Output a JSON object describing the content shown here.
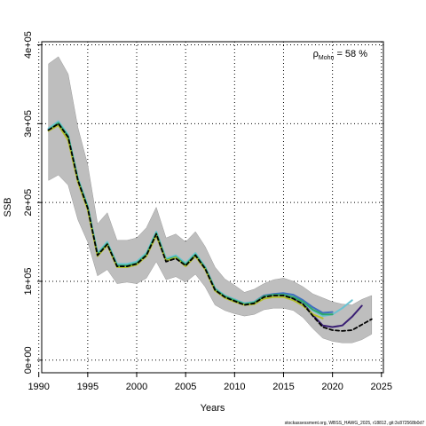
{
  "chart_data": {
    "type": "line",
    "xlabel": "Years",
    "ylabel": "SSB",
    "xlim": [
      1990.3,
      2025.2
    ],
    "ylim": [
      -16000,
      404000
    ],
    "x_ticks": [
      1990,
      1995,
      2000,
      2005,
      2010,
      2015,
      2020,
      2025
    ],
    "x_tick_labels": [
      "1990",
      "1995",
      "2000",
      "2005",
      "2010",
      "2015",
      "2020",
      "2025"
    ],
    "y_ticks": [
      0,
      100000,
      200000,
      300000,
      400000
    ],
    "y_tick_labels": [
      "0e+00",
      "1e+05",
      "2e+05",
      "3e+05",
      "4e+05"
    ],
    "grid": true,
    "annotation": {
      "rho": "ρ",
      "subscript": "Mohn",
      "value": " = 58 %"
    },
    "credit": "stockassessment.org, WBSS_HAWG_2025, r18812, git:3c872568b0d7",
    "band": {
      "color": "#bebebe",
      "x": [
        1991,
        1992,
        1993,
        1994,
        1995,
        1996,
        1997,
        1998,
        1999,
        2000,
        2001,
        2002,
        2003,
        2004,
        2005,
        2006,
        2007,
        2008,
        2009,
        2010,
        2011,
        2012,
        2013,
        2014,
        2015,
        2016,
        2017,
        2018,
        2019,
        2020,
        2021,
        2022,
        2023,
        2024
      ],
      "upper": [
        376000,
        385000,
        363000,
        295000,
        248000,
        173000,
        187000,
        152000,
        152000,
        155000,
        168000,
        194000,
        155000,
        160000,
        150000,
        163000,
        144000,
        118000,
        103000,
        95000,
        86000,
        90000,
        97000,
        102000,
        104000,
        100000,
        93000,
        84000,
        79000,
        74000,
        71000,
        70000,
        77000,
        82000
      ],
      "lower": [
        228000,
        235000,
        222000,
        178000,
        150000,
        107000,
        115000,
        97000,
        99000,
        97000,
        104000,
        125000,
        102000,
        106000,
        99000,
        109000,
        93000,
        70000,
        63000,
        59000,
        56000,
        58000,
        64000,
        66000,
        66000,
        63000,
        54000,
        40000,
        28000,
        24000,
        22000,
        22000,
        26000,
        33000
      ]
    },
    "series": [
      {
        "color": "#000000",
        "dashed": true,
        "x": [
          1991,
          1992,
          1993,
          1994,
          1995,
          1996,
          1997,
          1998,
          1999,
          2000,
          2001,
          2002,
          2003,
          2004,
          2005,
          2006,
          2007,
          2008,
          2009,
          2010,
          2011,
          2012,
          2013,
          2014,
          2015,
          2016,
          2017,
          2018,
          2019,
          2020,
          2021,
          2022,
          2023,
          2024
        ],
        "values": [
          292000,
          300000,
          283000,
          228000,
          193000,
          133000,
          147000,
          119000,
          119000,
          122000,
          133000,
          160000,
          125000,
          129000,
          120000,
          133000,
          116000,
          89000,
          80000,
          75000,
          70000,
          72000,
          80000,
          82000,
          82000,
          78000,
          71000,
          56000,
          42000,
          38000,
          37000,
          38000,
          45000,
          52000
        ]
      },
      {
        "color": "#3a1f74",
        "x": [
          1991,
          1992,
          1993,
          1994,
          1995,
          1996,
          1997,
          1998,
          1999,
          2000,
          2001,
          2002,
          2003,
          2004,
          2005,
          2006,
          2007,
          2008,
          2009,
          2010,
          2011,
          2012,
          2013,
          2014,
          2015,
          2016,
          2017,
          2018,
          2019,
          2020,
          2021,
          2022,
          2023
        ],
        "values": [
          292000,
          301000,
          284000,
          229000,
          194000,
          134000,
          148000,
          120000,
          120000,
          123000,
          134000,
          161000,
          127000,
          131000,
          121000,
          134000,
          117000,
          90000,
          81000,
          76000,
          71000,
          73000,
          81000,
          83000,
          83000,
          79000,
          72000,
          57000,
          44000,
          42000,
          44000,
          55000,
          69000
        ]
      },
      {
        "color": "#3d6fbf",
        "x": [
          1991,
          1992,
          1993,
          1994,
          1995,
          1996,
          1997,
          1998,
          1999,
          2000,
          2001,
          2002,
          2003,
          2004,
          2005,
          2006,
          2007,
          2008,
          2009,
          2010,
          2011,
          2012,
          2013,
          2014,
          2015,
          2016,
          2017,
          2018,
          2019,
          2020
        ],
        "values": [
          293000,
          302000,
          285000,
          230000,
          195000,
          135000,
          149000,
          121000,
          121000,
          124000,
          135000,
          162000,
          128000,
          132000,
          122000,
          135000,
          118000,
          91000,
          82000,
          77000,
          72000,
          74000,
          82000,
          84000,
          85000,
          83000,
          76000,
          67000,
          60000,
          61000
        ]
      },
      {
        "color": "#6bc3d2",
        "x": [
          1991,
          1992,
          1993,
          1994,
          1995,
          1996,
          1997,
          1998,
          1999,
          2000,
          2001,
          2002,
          2003,
          2004,
          2005,
          2006,
          2007,
          2008,
          2009,
          2010,
          2011,
          2012,
          2013,
          2014,
          2015,
          2016,
          2017,
          2018,
          2019,
          2020,
          2021,
          2022
        ],
        "values": [
          294000,
          303000,
          286000,
          231000,
          196000,
          136000,
          150000,
          122000,
          122000,
          125000,
          136000,
          163000,
          129000,
          133000,
          123000,
          136000,
          118000,
          91000,
          82000,
          77000,
          72000,
          74000,
          81000,
          83000,
          83000,
          80000,
          73000,
          63000,
          56000,
          58000,
          66000,
          76000
        ]
      },
      {
        "color": "#2fa86a",
        "x": [
          1991,
          1992,
          1993,
          1994,
          1995,
          1996,
          1997,
          1998,
          1999,
          2000,
          2001,
          2002,
          2003,
          2004,
          2005,
          2006,
          2007,
          2008,
          2009,
          2010,
          2011,
          2012,
          2013,
          2014,
          2015,
          2016,
          2017,
          2018,
          2019,
          2020
        ],
        "values": [
          292000,
          301000,
          284000,
          229000,
          194000,
          134000,
          148000,
          120000,
          120000,
          123000,
          134000,
          161000,
          127000,
          131000,
          121000,
          134000,
          117000,
          90000,
          81000,
          76000,
          71000,
          73000,
          81000,
          83000,
          83000,
          80000,
          74000,
          64000,
          58000,
          58000
        ]
      },
      {
        "color": "#b3c02a",
        "x": [
          1991,
          1992,
          1993,
          1994,
          1995,
          1996,
          1997,
          1998,
          1999,
          2000,
          2001,
          2002,
          2003,
          2004,
          2005,
          2006,
          2007,
          2008,
          2009,
          2010,
          2011,
          2012,
          2013,
          2014,
          2015,
          2016,
          2017,
          2018,
          2019
        ],
        "values": [
          291000,
          298000,
          279000,
          226000,
          191000,
          132000,
          146000,
          118000,
          118000,
          121000,
          132000,
          158000,
          126000,
          130000,
          119000,
          132000,
          115000,
          88000,
          79000,
          74000,
          70000,
          71000,
          78000,
          80000,
          80000,
          76000,
          69000,
          58000,
          53000
        ]
      }
    ]
  }
}
